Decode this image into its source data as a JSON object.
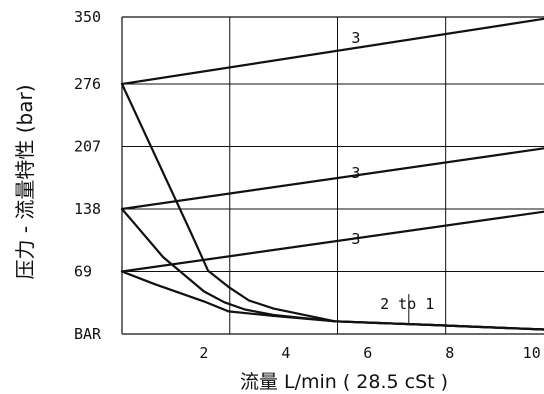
{
  "chart_data": {
    "type": "line",
    "title": "",
    "ylabel": "压力 - 流量特性 (bar)",
    "xlabel": "流量 L/min ( 28.5 cSt )",
    "y_bottom_label": "BAR",
    "xlim": [
      0,
      10.3
    ],
    "ylim": [
      0,
      350
    ],
    "x_ticks": [
      2,
      4,
      6,
      8,
      10
    ],
    "x_grid": [
      2.63,
      5.26,
      7.9
    ],
    "y_ticks": [
      69,
      138,
      207,
      276,
      350
    ],
    "grid": true,
    "series": [
      {
        "x": [
          0,
          10.3
        ],
        "y": [
          276,
          348
        ]
      },
      {
        "x": [
          0,
          10.3
        ],
        "y": [
          138,
          205
        ]
      },
      {
        "x": [
          0,
          10.3
        ],
        "y": [
          69,
          135
        ]
      },
      {
        "x": [
          0,
          1.7,
          2.1,
          2.6,
          3.1,
          3.7,
          5.2,
          7.5,
          10.3
        ],
        "y": [
          276,
          110,
          70,
          52,
          37,
          28,
          14,
          10,
          5
        ]
      },
      {
        "x": [
          0,
          1.0,
          2.0,
          2.5,
          3.0,
          3.7,
          5.2,
          7.5,
          10.3
        ],
        "y": [
          138,
          85,
          47,
          35,
          27,
          21,
          14,
          10,
          5
        ]
      },
      {
        "x": [
          0,
          0.8,
          2.0,
          2.6,
          3.7,
          5.2,
          7.5,
          10.3
        ],
        "y": [
          69,
          55,
          36,
          25,
          20,
          14,
          10,
          5
        ]
      }
    ],
    "annotations": [
      {
        "text": "3",
        "x": 5.6,
        "y": 327
      },
      {
        "text": "3",
        "x": 5.6,
        "y": 178
      },
      {
        "text": "3",
        "x": 5.6,
        "y": 105
      },
      {
        "text": "2 to 1",
        "x": 6.3,
        "y": 33,
        "leader_to": {
          "x": 7.0,
          "y": 11
        }
      }
    ]
  }
}
